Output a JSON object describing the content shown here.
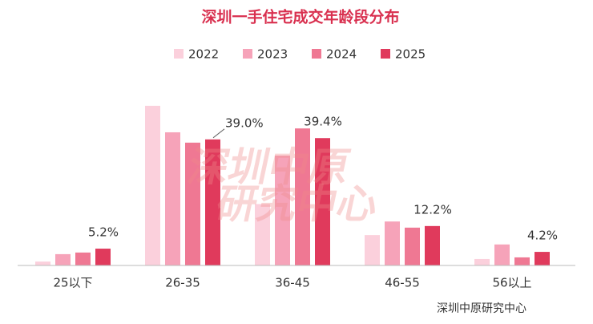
{
  "chart_data": {
    "type": "bar",
    "title": "深圳一手住宅成交年龄段分布",
    "categories": [
      "25以下",
      "26-35",
      "36-45",
      "46-55",
      "56以上"
    ],
    "series": [
      {
        "name": "2022",
        "color": "#fbd0dc",
        "values": [
          1.2,
          49.4,
          19.0,
          9.4,
          2.0
        ]
      },
      {
        "name": "2023",
        "color": "#f6a3b9",
        "values": [
          3.5,
          41.2,
          34.0,
          13.6,
          6.5
        ]
      },
      {
        "name": "2024",
        "color": "#ef7893",
        "values": [
          4.0,
          38.0,
          42.4,
          11.7,
          2.5
        ]
      },
      {
        "name": "2025",
        "color": "#e03a5c",
        "values": [
          5.2,
          39.0,
          39.4,
          12.2,
          4.2
        ],
        "value_labels": [
          "5.2%",
          "39.0%",
          "39.4%",
          "12.2%",
          "4.2%"
        ]
      }
    ],
    "watermark": [
      "深圳中原",
      "研究中心"
    ],
    "source": "深圳中原研究中心"
  }
}
